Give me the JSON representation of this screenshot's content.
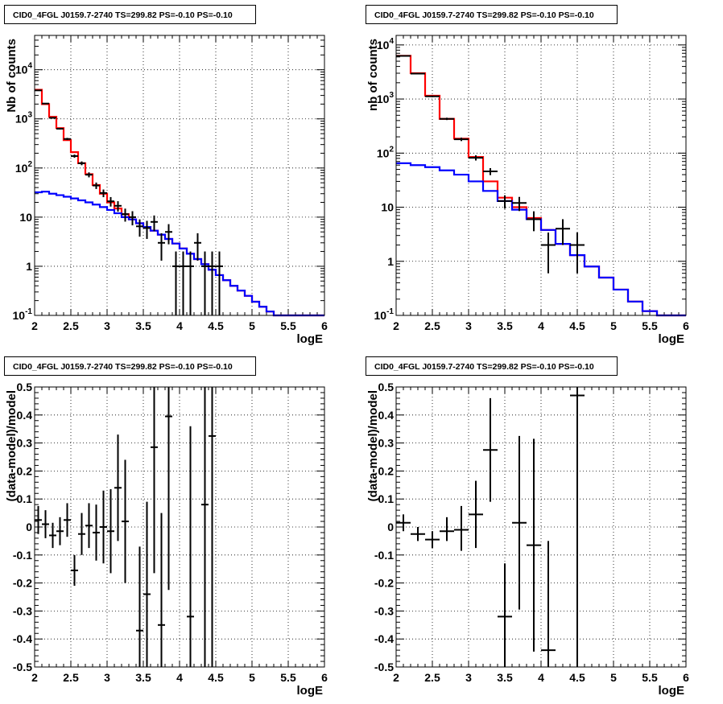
{
  "chart_data": [
    {
      "type": "histogram-with-errorbars",
      "title": "CID0_4FGL J0159.7-2740 TS=299.82 PS=-0.10 PS=-0.10",
      "xlabel": "logE",
      "ylabel": "Nb of counts",
      "xlim": [
        2,
        6
      ],
      "ylim": [
        0.1,
        50000
      ],
      "yscale": "log",
      "grid": true,
      "xticks": [
        "2",
        "2.5",
        "3",
        "3.5",
        "4",
        "4.5",
        "5",
        "5.5",
        "6"
      ],
      "yticks": [
        "10^-1",
        "1",
        "10",
        "10^2",
        "10^3",
        "10^4"
      ],
      "bin_edges": [
        2.0,
        2.1,
        2.2,
        2.3,
        2.4,
        2.5,
        2.6,
        2.7,
        2.8,
        2.9,
        3.0,
        3.1,
        3.2,
        3.3,
        3.4,
        3.5,
        3.6,
        3.7,
        3.8,
        3.9,
        4.0,
        4.1,
        4.2,
        4.3,
        4.4,
        4.5,
        4.6,
        4.7,
        4.8,
        4.9,
        5.0,
        5.1,
        5.2,
        5.3,
        5.4,
        5.5,
        5.6,
        5.7,
        5.8,
        5.9,
        6.0
      ],
      "series": [
        {
          "color": "#ff0000",
          "kind": "step",
          "values": [
            3900,
            2000,
            1100,
            650,
            370,
            210,
            125,
            75,
            45,
            30,
            20,
            15,
            11.5,
            9,
            7.5,
            6.3,
            5.3,
            4.4,
            3.6,
            2.9,
            2.3,
            1.8,
            1.4,
            1.1,
            0.85,
            0.66,
            0.52,
            0.4,
            0.32,
            0.25,
            0.19,
            0.15,
            0.12,
            0.1,
            0.1,
            0.1,
            0.1,
            0.1,
            0.1,
            0.1
          ]
        },
        {
          "color": "#0000ff",
          "kind": "step",
          "values": [
            32,
            33,
            30,
            28,
            26,
            24,
            22,
            20,
            18,
            16,
            14,
            12,
            10,
            9,
            7.5,
            6.3,
            5.3,
            4.4,
            3.6,
            2.9,
            2.3,
            1.8,
            1.4,
            1.1,
            0.85,
            0.66,
            0.52,
            0.4,
            0.32,
            0.25,
            0.19,
            0.15,
            0.12,
            0.1,
            0.1,
            0.1,
            0.1,
            0.1,
            0.1,
            0.1
          ]
        },
        {
          "color": "#000000",
          "kind": "points",
          "x": [
            2.05,
            2.15,
            2.25,
            2.35,
            2.45,
            2.55,
            2.65,
            2.75,
            2.85,
            2.95,
            3.05,
            3.15,
            3.25,
            3.35,
            3.45,
            3.55,
            3.65,
            3.75,
            3.85,
            3.95,
            4.05,
            4.15,
            4.25,
            4.35,
            4.45,
            4.55
          ],
          "y": [
            3800,
            2050,
            1050,
            630,
            390,
            175,
            125,
            73,
            44,
            31,
            21,
            17,
            11.5,
            10,
            6.5,
            6,
            8,
            3,
            5,
            1,
            1,
            1,
            3,
            1,
            1,
            1
          ],
          "yerr_lo": [
            60,
            45,
            32,
            25,
            20,
            13,
            11,
            8.5,
            6.6,
            5.5,
            4.6,
            4.1,
            3.4,
            3.2,
            2.5,
            2.4,
            2.8,
            1.7,
            2.2,
            0.99,
            0.99,
            0.99,
            1.7,
            0.99,
            0.99,
            0.99
          ],
          "yerr_hi": [
            60,
            45,
            32,
            25,
            20,
            13,
            11,
            8.5,
            6.6,
            5.5,
            4.6,
            4.1,
            3.4,
            3.2,
            2.5,
            2.4,
            2.8,
            1.7,
            2.2,
            1.0,
            1.0,
            1.0,
            1.7,
            1.0,
            1.0,
            1.0
          ]
        }
      ]
    },
    {
      "type": "histogram-with-errorbars",
      "title": "CID0_4FGL J0159.7-2740 TS=299.82 PS=-0.10 PS=-0.10",
      "xlabel": "logE",
      "ylabel": "nb of counts",
      "xlim": [
        2,
        6
      ],
      "ylim": [
        0.1,
        15000
      ],
      "yscale": "log",
      "grid": true,
      "xticks": [
        "2",
        "2.5",
        "3",
        "3.5",
        "4",
        "4.5",
        "5",
        "5.5",
        "6"
      ],
      "yticks": [
        "10^-1",
        "1",
        "10",
        "10^2",
        "10^3",
        "10^4"
      ],
      "bin_edges": [
        2.0,
        2.2,
        2.4,
        2.6,
        2.8,
        3.0,
        3.2,
        3.4,
        3.6,
        3.8,
        4.0,
        4.2,
        4.4,
        4.6,
        4.8,
        5.0,
        5.2,
        5.4,
        5.6,
        5.8,
        6.0
      ],
      "series": [
        {
          "color": "#ff0000",
          "kind": "step",
          "values": [
            6300,
            3000,
            1150,
            430,
            185,
            85,
            30,
            15,
            10,
            6.3,
            3.8,
            2.1,
            1.3,
            0.8,
            0.5,
            0.3,
            0.18,
            0.12,
            0.1,
            0.1
          ]
        },
        {
          "color": "#0000ff",
          "kind": "step",
          "values": [
            65,
            60,
            55,
            48,
            40,
            30,
            20,
            13,
            9,
            6,
            3.8,
            2.1,
            1.3,
            0.8,
            0.5,
            0.3,
            0.18,
            0.12,
            0.1,
            0.1
          ]
        },
        {
          "color": "#000000",
          "kind": "points",
          "x": [
            2.1,
            2.3,
            2.5,
            2.7,
            2.9,
            3.1,
            3.3,
            3.5,
            3.7,
            3.9,
            4.1,
            4.3,
            4.5
          ],
          "y": [
            6250,
            2950,
            1120,
            430,
            180,
            82,
            46,
            13,
            12,
            6,
            2,
            4,
            2
          ],
          "yerr_lo": [
            80,
            55,
            33,
            21,
            13,
            9,
            6.8,
            3.6,
            3.5,
            2.4,
            1.4,
            2,
            1.4
          ],
          "yerr_hi": [
            80,
            55,
            33,
            21,
            13,
            9,
            6.8,
            3.6,
            3.5,
            2.4,
            1.4,
            2,
            1.4
          ]
        }
      ]
    },
    {
      "type": "scatter-errorbars",
      "title": "CID0_4FGL J0159.7-2740 TS=299.82 PS=-0.10 PS=-0.10",
      "xlabel": "logE",
      "ylabel": "(data-model)/model",
      "xlim": [
        2,
        6
      ],
      "ylim": [
        -0.5,
        0.5
      ],
      "grid": true,
      "xticks": [
        "2",
        "2.5",
        "3",
        "3.5",
        "4",
        "4.5",
        "5",
        "5.5",
        "6"
      ],
      "yticks": [
        "-0.5",
        "-0.4",
        "-0.3",
        "-0.2",
        "-0.1",
        "0",
        "0.1",
        "0.2",
        "0.3",
        "0.4",
        "0.5"
      ],
      "series": [
        {
          "color": "#000000",
          "x": [
            2.05,
            2.15,
            2.25,
            2.35,
            2.45,
            2.55,
            2.65,
            2.75,
            2.85,
            2.95,
            3.05,
            3.15,
            3.25,
            3.45,
            3.55,
            3.65,
            3.75,
            3.85,
            4.15,
            4.35,
            4.45
          ],
          "y": [
            0.025,
            0.01,
            -0.03,
            -0.015,
            0.025,
            -0.155,
            -0.025,
            0.005,
            -0.02,
            0.0,
            -0.015,
            0.14,
            0.02,
            -0.37,
            -0.24,
            0.285,
            -0.35,
            0.395,
            -0.32,
            0.08,
            0.325
          ],
          "yerr_lo": [
            0.05,
            0.05,
            0.045,
            0.05,
            0.06,
            0.055,
            0.075,
            0.08,
            0.1,
            0.13,
            0.15,
            0.19,
            0.22,
            0.3,
            0.33,
            0.45,
            0.4,
            0.62,
            0.7,
            0.95,
            0.95
          ],
          "yerr_hi": [
            0.05,
            0.05,
            0.045,
            0.05,
            0.06,
            0.055,
            0.075,
            0.08,
            0.1,
            0.13,
            0.15,
            0.19,
            0.22,
            0.3,
            0.33,
            0.45,
            0.4,
            0.62,
            0.68,
            0.95,
            0.95
          ]
        }
      ]
    },
    {
      "type": "scatter-errorbars",
      "title": "CID0_4FGL J0159.7-2740 TS=299.82 PS=-0.10 PS=-0.10",
      "xlabel": "logE",
      "ylabel": "(data-model)/model",
      "xlim": [
        2,
        6
      ],
      "ylim": [
        -0.5,
        0.5
      ],
      "grid": true,
      "xticks": [
        "2",
        "2.5",
        "3",
        "3.5",
        "4",
        "4.5",
        "5",
        "5.5",
        "6"
      ],
      "yticks": [
        "-0.5",
        "-0.4",
        "-0.3",
        "-0.2",
        "-0.1",
        "0",
        "0.1",
        "0.2",
        "0.3",
        "0.4",
        "0.5"
      ],
      "series": [
        {
          "color": "#000000",
          "x": [
            2.1,
            2.3,
            2.5,
            2.7,
            2.9,
            3.1,
            3.3,
            3.5,
            3.7,
            3.9,
            4.1,
            4.5
          ],
          "y": [
            0.015,
            -0.025,
            -0.045,
            -0.015,
            -0.01,
            0.045,
            0.275,
            -0.32,
            0.015,
            -0.065,
            -0.44,
            0.47
          ],
          "yerr_lo": [
            0.03,
            0.025,
            0.03,
            0.035,
            0.075,
            0.12,
            0.185,
            0.19,
            0.31,
            0.38,
            0.4,
            1.0
          ],
          "yerr_hi": [
            0.03,
            0.025,
            0.03,
            0.05,
            0.085,
            0.12,
            0.185,
            0.19,
            0.31,
            0.38,
            0.39,
            1.0
          ]
        }
      ]
    }
  ]
}
